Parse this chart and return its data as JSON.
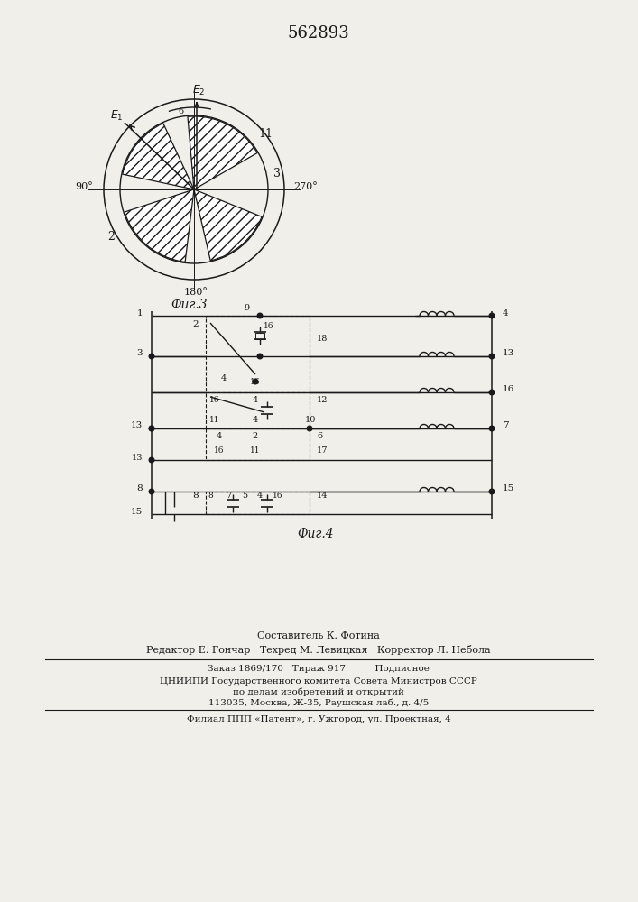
{
  "title": "562893",
  "fig3_caption": "Фиг.3",
  "fig4_caption": "Фиг.4",
  "footer_line0": "Составитель К. Фотина",
  "footer_line1": "Редактор Е. Гончар   Техред М. Левицкая   Корректор Л. Небола",
  "footer_line2": "Заказ 1869/170   Тираж 917          Подписное",
  "footer_line3": "ЦНИИПИ Государственного комитета Совета Министров СССР",
  "footer_line4": "по делам изобретений и открытий",
  "footer_line5": "113035, Москва, Ж-35, Раушская лаб., д. 4/5",
  "footer_line6": "Филиал ППП «Патент», г. Ужгород, ул. Проектная, 4",
  "bg": "#f0efea",
  "lc": "#1a1a1a"
}
